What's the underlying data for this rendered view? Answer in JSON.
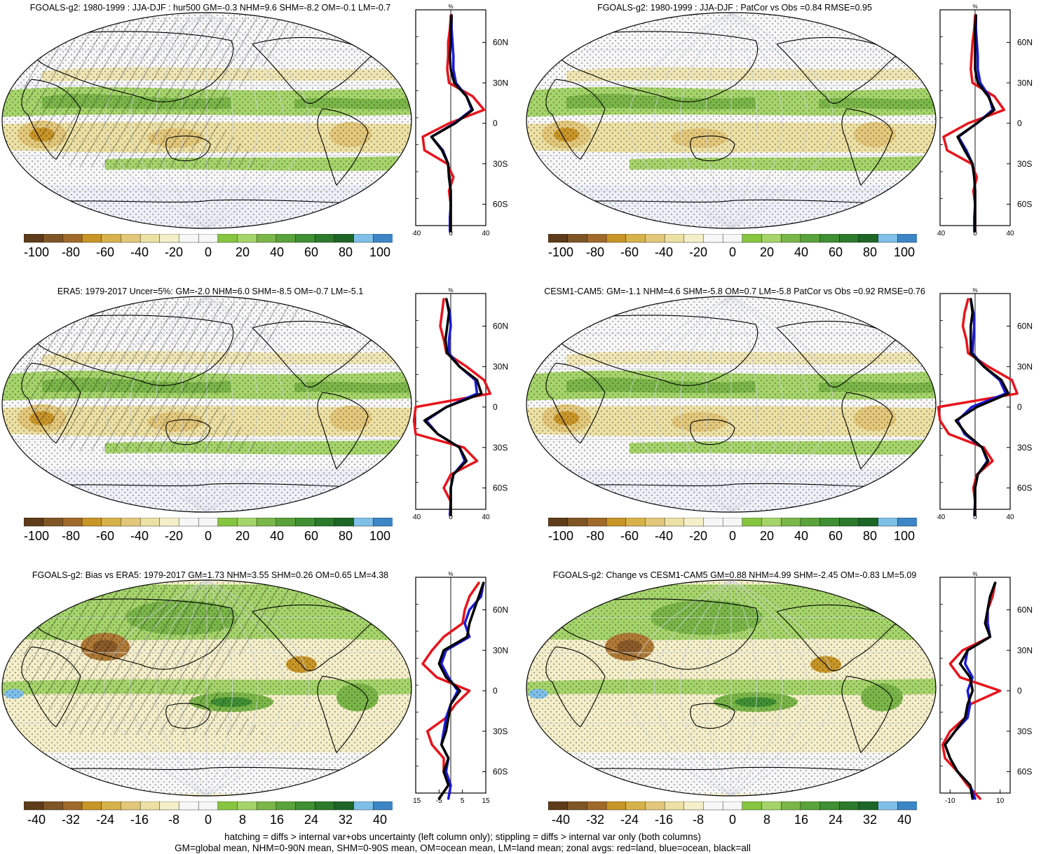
{
  "panels": [
    {
      "id": "p1",
      "col": 0,
      "row": 0,
      "title": "FGOALS-g2: 1980-1999 : JJA-DJF : hur500 GM=-0.3 NHM=9.6 SHM=-8.2 OM=-0.1 LM=-0.7",
      "hatch": true,
      "type": "clim"
    },
    {
      "id": "p2",
      "col": 1,
      "row": 0,
      "title": "FGOALS-g2: 1980-1999 : JJA-DJF : PatCor vs Obs =0.84 RMSE=0.95",
      "hatch": false,
      "type": "clim"
    },
    {
      "id": "p3",
      "col": 0,
      "row": 1,
      "title": "ERA5: 1979-2017 Uncer=5%: GM=-2.0 NHM=6.0 SHM=-8.5 OM=-0.7 LM=-5.1",
      "hatch": true,
      "type": "clim"
    },
    {
      "id": "p4",
      "col": 1,
      "row": 1,
      "title": "CESM1-CAM5: GM=-1.1 NHM=4.6 SHM=-5.8 OM=0.7 LM=-5.8 PatCor vs Obs =0.92 RMSE=0.76",
      "hatch": false,
      "type": "clim"
    },
    {
      "id": "p5",
      "col": 0,
      "row": 2,
      "title": "FGOALS-g2: Bias vs ERA5: 1979-2017 GM=1.73 NHM=3.55 SHM=0.26 OM=0.65 LM=4.38",
      "hatch": true,
      "type": "bias"
    },
    {
      "id": "p6",
      "col": 1,
      "row": 2,
      "title": "FGOALS-g2: Change vs CESM1-CAM5 GM=0.88 NHM=4.99 SHM=-2.45 OM=-0.83 LM=5.09",
      "hatch": false,
      "type": "bias"
    }
  ],
  "colorbar": {
    "colors": [
      "#5e3c19",
      "#7f5526",
      "#a06a2a",
      "#c89527",
      "#d7b24a",
      "#e3c77a",
      "#ece0a3",
      "#f4eec9",
      "#f7f7f7",
      "#f7f7f7",
      "#86c540",
      "#a5d46a",
      "#7ab648",
      "#5aa23b",
      "#3f8f33",
      "#2c7a2b",
      "#1e6627",
      "#7fc0e9",
      "#3d86c6"
    ],
    "labels_clim": [
      "-100",
      "-80",
      "-60",
      "-40",
      "-20",
      "0",
      "20",
      "40",
      "60",
      "80",
      "100"
    ],
    "labels_bias": [
      "-40",
      "-32",
      "-24",
      "-16",
      "-8",
      "0",
      "8",
      "16",
      "24",
      "32",
      "40"
    ]
  },
  "zonal": {
    "unit": "%",
    "lat_labels": [
      "60N",
      "30N",
      "0",
      "30S",
      "60S"
    ],
    "lat_values": [
      60,
      30,
      0,
      -30,
      -60
    ],
    "xlabels_clim": [
      "-40",
      "0",
      "40"
    ],
    "xvalues_clim": [
      -40,
      0,
      40
    ],
    "xlabels_p5": [
      "-15",
      "-5",
      "5",
      "15"
    ],
    "xvalues_p5": [
      -15,
      -5,
      5,
      15
    ],
    "xlabels_p6": [
      "-10",
      "10"
    ],
    "xvalues_p6": [
      -10,
      10
    ],
    "legend": {
      "land": "#e8131b",
      "ocean": "#1a1adb",
      "all": "#000000"
    }
  },
  "chart_data": {
    "type": "line",
    "description_of_zonal_profiles": "zonal averages by latitude; red=land, blue=ocean, black=all",
    "lat": [
      80,
      70,
      60,
      50,
      40,
      30,
      20,
      10,
      0,
      -10,
      -20,
      -30,
      -40,
      -50,
      -60,
      -70,
      -80
    ],
    "profiles": {
      "p1": {
        "xlim": [
          -40,
          40
        ],
        "all": [
          1,
          0,
          0,
          -1,
          0,
          4,
          18,
          25,
          5,
          -22,
          -10,
          -3,
          -2,
          0,
          0,
          0,
          0
        ],
        "ocean": [
          1,
          1,
          2,
          3,
          3,
          6,
          18,
          24,
          4,
          -22,
          -9,
          -3,
          -2,
          0,
          0,
          -1,
          -1
        ],
        "land": [
          0,
          -1,
          -3,
          -3,
          -4,
          -2,
          25,
          38,
          -2,
          -32,
          -30,
          -4,
          3,
          -2,
          0,
          0,
          0
        ]
      },
      "p2": {
        "xlim": [
          -40,
          40
        ],
        "all": [
          1,
          0,
          0,
          0,
          0,
          3,
          15,
          22,
          2,
          -20,
          -12,
          -3,
          -1,
          0,
          0,
          0,
          0
        ],
        "ocean": [
          1,
          1,
          2,
          3,
          3,
          6,
          16,
          20,
          2,
          -19,
          -10,
          -3,
          -1,
          0,
          0,
          -1,
          -1
        ],
        "land": [
          0,
          -1,
          -3,
          -4,
          -5,
          -3,
          22,
          33,
          -8,
          -36,
          -32,
          -4,
          2,
          -2,
          0,
          0,
          0
        ]
      },
      "p3": {
        "xlim": [
          -40,
          40
        ],
        "all": [
          -5,
          -2,
          -4,
          -6,
          -4,
          10,
          30,
          35,
          -5,
          -30,
          -15,
          10,
          18,
          3,
          0,
          0,
          0
        ],
        "ocean": [
          -5,
          -1,
          0,
          -2,
          -2,
          10,
          28,
          30,
          -5,
          -28,
          -15,
          10,
          16,
          3,
          0,
          0,
          -1
        ],
        "land": [
          -8,
          -10,
          -12,
          -8,
          -5,
          18,
          38,
          45,
          -40,
          -42,
          -40,
          15,
          30,
          0,
          -8,
          0,
          0
        ]
      },
      "p4": {
        "xlim": [
          -40,
          40
        ],
        "all": [
          -5,
          -3,
          -5,
          -5,
          -5,
          10,
          30,
          38,
          2,
          -22,
          -10,
          8,
          15,
          3,
          0,
          0,
          0
        ],
        "ocean": [
          -5,
          -2,
          -1,
          -2,
          -3,
          10,
          28,
          35,
          -4,
          -20,
          -12,
          8,
          14,
          3,
          0,
          0,
          -1
        ],
        "land": [
          -8,
          -12,
          -14,
          -10,
          -8,
          15,
          42,
          48,
          -42,
          -40,
          -30,
          10,
          20,
          2,
          -2,
          0,
          0
        ]
      },
      "p5": {
        "xlim": [
          -15,
          15
        ],
        "all": [
          14,
          12,
          10,
          8,
          7,
          -3,
          -5,
          -2,
          4,
          0,
          -1,
          -2,
          -4,
          -1,
          -3,
          -1,
          -5
        ],
        "ocean": [
          14,
          13,
          8,
          6,
          8,
          -2,
          -4,
          -1,
          3,
          0,
          -2,
          -3,
          -4,
          -1,
          -2,
          0,
          -1
        ],
        "land": [
          12,
          8,
          6,
          5,
          -3,
          -8,
          -12,
          -6,
          8,
          2,
          -2,
          -10,
          -8,
          -3,
          -3,
          -1,
          -5
        ]
      },
      "p6": {
        "xlim": [
          -14,
          14
        ],
        "all": [
          8,
          6,
          5,
          4,
          6,
          -3,
          -6,
          -2,
          -1,
          -3,
          -4,
          -8,
          -12,
          -10,
          -7,
          -2,
          -1
        ],
        "ocean": [
          8,
          6,
          5,
          5,
          6,
          -3,
          -4,
          -1,
          -3,
          -2,
          -3,
          -8,
          -12,
          -10,
          -7,
          -2,
          0
        ],
        "land": [
          8,
          7,
          5,
          5,
          6,
          -5,
          -10,
          -6,
          10,
          -2,
          -4,
          -10,
          -13,
          -12,
          -7,
          -3,
          2
        ]
      }
    }
  },
  "footer": {
    "line1": "hatching = diffs > internal var+obs uncertainty (left column only); stippling = diffs > internal var only (both columns)",
    "line2": "GM=global mean, NHM=0-90N mean, SHM=0-90S mean, OM=ocean mean, LM=land mean; zonal avgs: red=land, blue=ocean, black=all"
  }
}
